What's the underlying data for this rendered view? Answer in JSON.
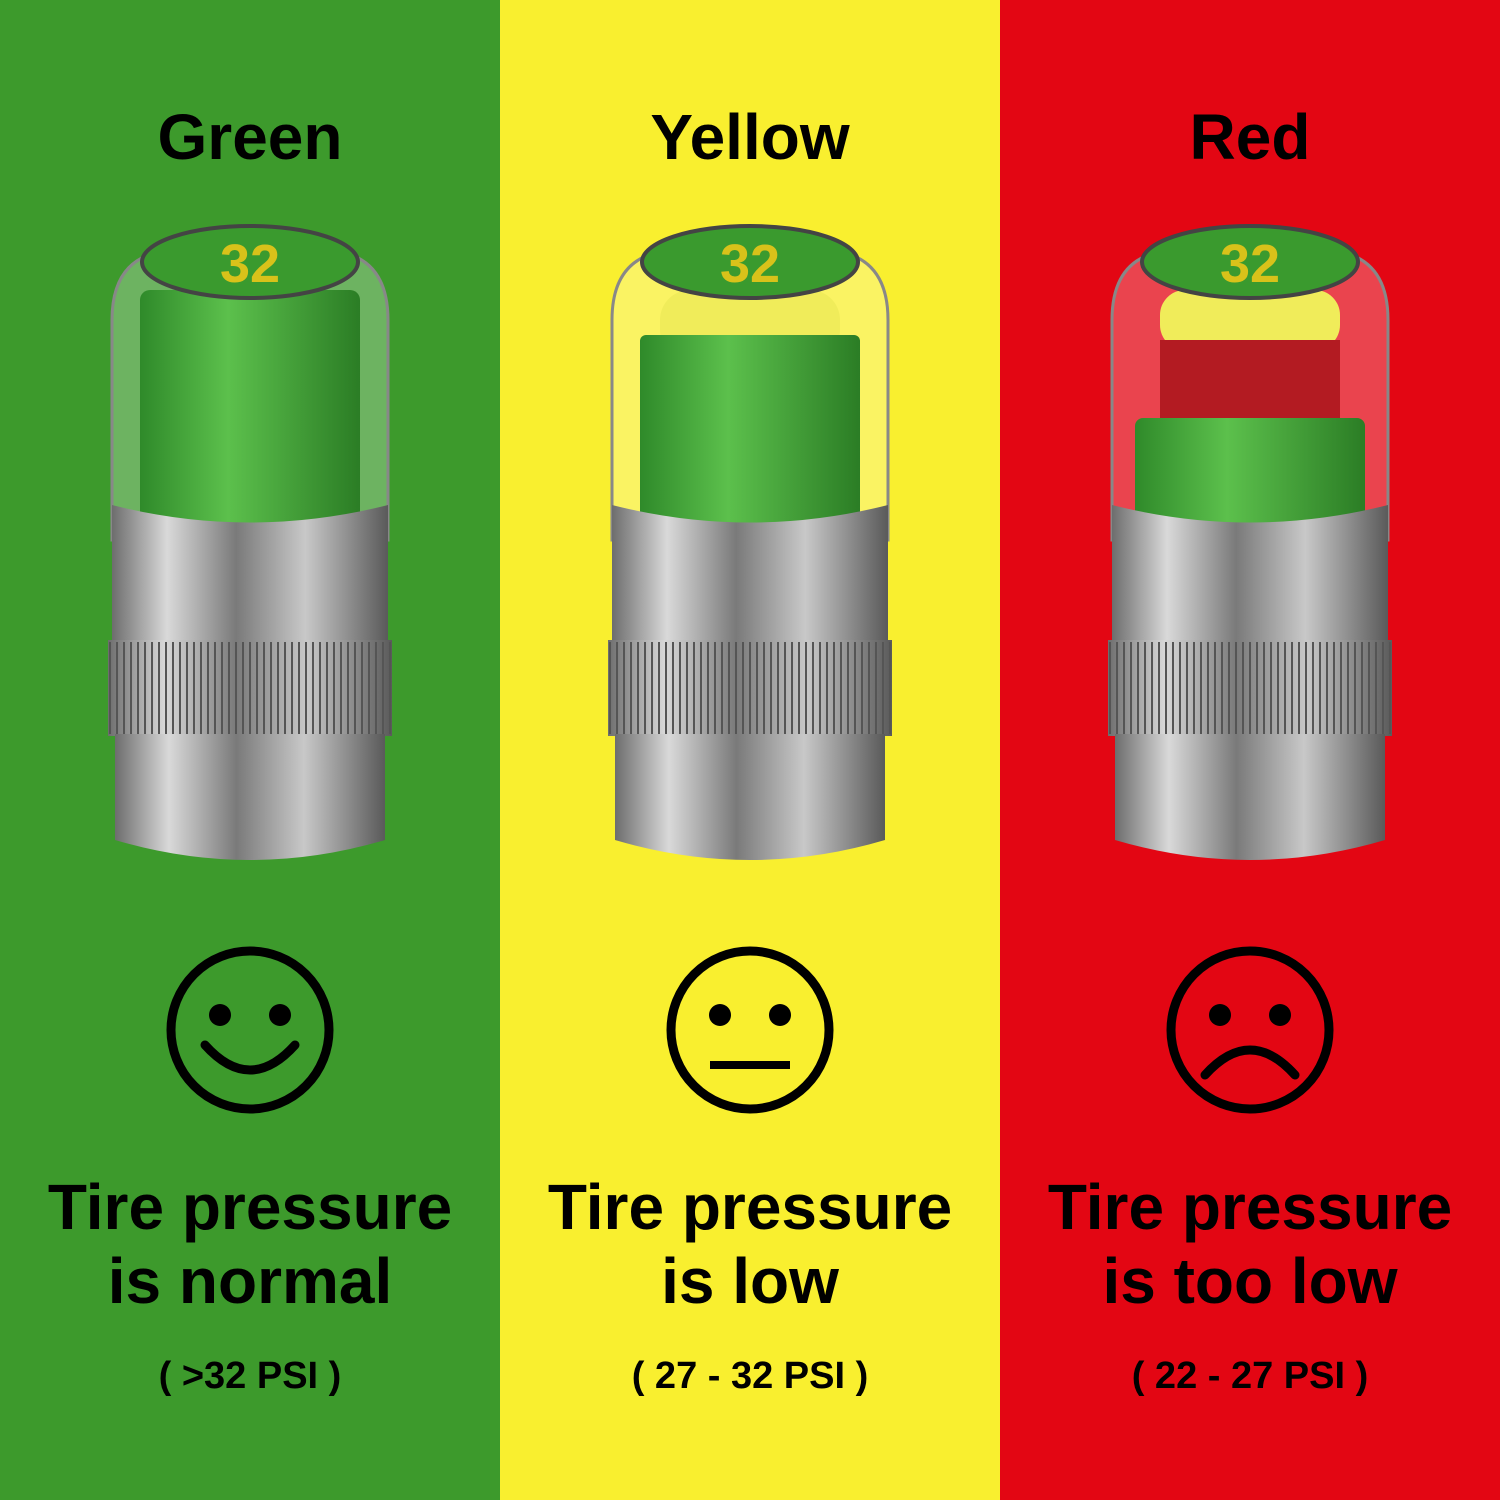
{
  "panels": [
    {
      "title": "Green",
      "line1": "Tire pressure",
      "line2": "is normal",
      "range": "( >32 PSI )",
      "bg": "#3d9a2c",
      "state": "normal",
      "face": "smiling-face-icon",
      "cap_label": "32"
    },
    {
      "title": "Yellow",
      "line1": "Tire pressure",
      "line2": "is low",
      "range": "( 27 - 32 PSI )",
      "bg": "#f9ef2f",
      "state": "low",
      "face": "neutral-face-icon",
      "cap_label": "32"
    },
    {
      "title": "Red",
      "line1": "Tire pressure",
      "line2": "is too low",
      "range": "( 22 - 27 PSI )",
      "bg": "#e30613",
      "state": "too-low",
      "face": "sad-face-icon",
      "cap_label": "32"
    }
  ],
  "colors": {
    "indicator_green": "#3fa535",
    "indicator_yellow": "#f0ec5a",
    "indicator_red": "#b31b22",
    "label_yellow": "#d8c21a"
  }
}
